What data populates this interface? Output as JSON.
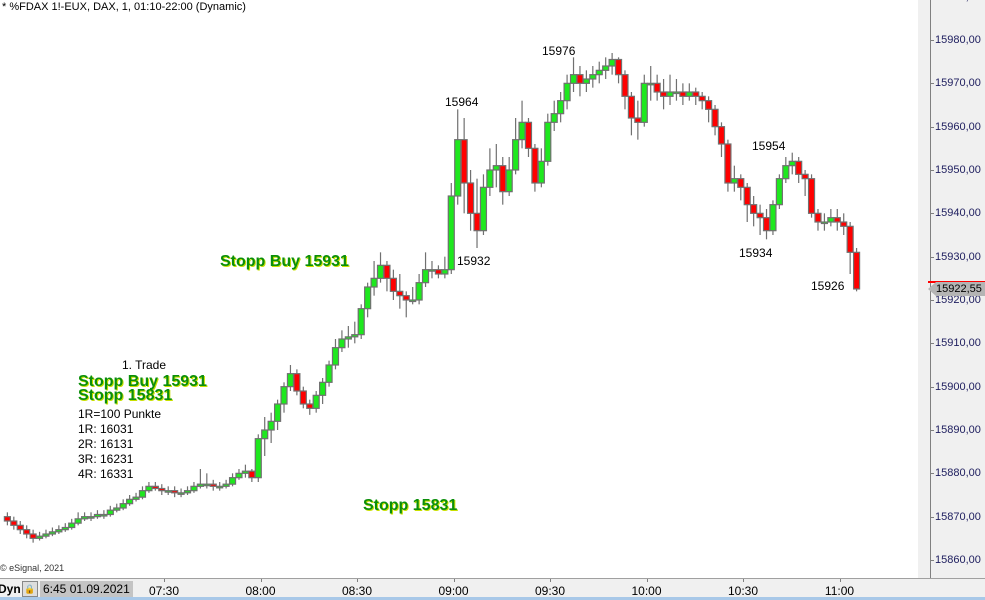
{
  "header": {
    "title": "* %FDAX 1!-EUX, DAX, 1, 01:10-22:00 (Dynamic)"
  },
  "copyright": "© eSignal, 2021",
  "time_axis": {
    "mode_label": "Dyn",
    "lock_icon": "lock-icon",
    "start_label": "6:45 01.09.2021"
  },
  "last_price": "15922,55",
  "colors": {
    "up": "#1ee81e",
    "down": "#ff0000",
    "border": "#707070",
    "annotation_green": "#0b8f0b"
  },
  "annotations": {
    "trade_title": "1. Trade",
    "stop_buy_1": "Stopp Buy 15931",
    "stop_1": "Stopp 15831",
    "r_def": "1R=100 Punkte",
    "r1": "1R: 16031",
    "r2": "2R: 16131",
    "r3": "3R: 16231",
    "r4": "4R: 16331",
    "stop_buy_2": "Stopp Buy 15931",
    "stop_2": "Stopp 15831",
    "p15964": "15964",
    "p15932": "15932",
    "p15976": "15976",
    "p15954": "15954",
    "p15934": "15934",
    "p15926": "15926"
  },
  "chart_data": {
    "type": "candlestick",
    "title": "* %FDAX 1!-EUX, DAX, 1, 01:10-22:00 (Dynamic)",
    "ylim": [
      15857,
      15989
    ],
    "y_ticks": [
      "15990,00",
      "15980,00",
      "15970,00",
      "15960,00",
      "15950,00",
      "15940,00",
      "15930,00",
      "15920,00",
      "15910,00",
      "15900,00",
      "15890,00",
      "15880,00",
      "15870,00",
      "15860,00"
    ],
    "y_tick_values": [
      15990,
      15980,
      15970,
      15960,
      15950,
      15940,
      15930,
      15920,
      15910,
      15900,
      15890,
      15880,
      15870,
      15860
    ],
    "x_ticks": [
      "07:30",
      "08:00",
      "08:30",
      "09:00",
      "09:30",
      "10:00",
      "10:30",
      "11:00"
    ],
    "x_tick_minutes": [
      450,
      480,
      510,
      540,
      570,
      600,
      630,
      660
    ],
    "start_minute": 401,
    "minutes_per_candle": 2,
    "ohlc": [
      [
        15870,
        15871,
        15868,
        15869
      ],
      [
        15869,
        15870,
        15867,
        15868
      ],
      [
        15868,
        15869,
        15866,
        15867
      ],
      [
        15867,
        15868,
        15865,
        15866
      ],
      [
        15866,
        15867,
        15864,
        15865
      ],
      [
        15865,
        15866.5,
        15864.5,
        15865.5
      ],
      [
        15865.5,
        15867,
        15865,
        15866
      ],
      [
        15866,
        15867.5,
        15865.5,
        15866.5
      ],
      [
        15866.5,
        15868,
        15866,
        15867
      ],
      [
        15867,
        15868.5,
        15866.5,
        15867.5
      ],
      [
        15867.5,
        15869.5,
        15867,
        15868.5
      ],
      [
        15868.5,
        15871,
        15868,
        15869.5
      ],
      [
        15869.5,
        15871,
        15869,
        15870
      ],
      [
        15870,
        15871,
        15869,
        15870
      ],
      [
        15870,
        15871.5,
        15869.5,
        15870.5
      ],
      [
        15870.5,
        15871.5,
        15869.5,
        15870.5
      ],
      [
        15870.5,
        15872.5,
        15870,
        15871.5
      ],
      [
        15871.5,
        15873,
        15871,
        15872
      ],
      [
        15872,
        15874,
        15871.5,
        15873
      ],
      [
        15873,
        15875,
        15872.5,
        15874
      ],
      [
        15874,
        15875.5,
        15873.5,
        15874.5
      ],
      [
        15874.5,
        15877,
        15874,
        15876
      ],
      [
        15876,
        15878,
        15875.5,
        15877
      ],
      [
        15877,
        15878,
        15876,
        15876.5
      ],
      [
        15876.5,
        15877.5,
        15875,
        15876
      ],
      [
        15876,
        15877,
        15875,
        15876
      ],
      [
        15876,
        15877,
        15874.5,
        15875.5
      ],
      [
        15875.5,
        15876.5,
        15874.5,
        15875.5
      ],
      [
        15875.5,
        15877,
        15875,
        15876
      ],
      [
        15876,
        15878,
        15875.5,
        15877
      ],
      [
        15877,
        15881,
        15876.5,
        15877.5
      ],
      [
        15877.5,
        15880,
        15876.5,
        15877.5
      ],
      [
        15877.5,
        15878.5,
        15876,
        15877
      ],
      [
        15877,
        15878,
        15876,
        15877
      ],
      [
        15877,
        15878.5,
        15876.5,
        15877.5
      ],
      [
        15877.5,
        15880,
        15877,
        15879
      ],
      [
        15879,
        15881,
        15878.5,
        15880
      ],
      [
        15880,
        15882,
        15879,
        15880.5
      ],
      [
        15880.5,
        15881,
        15878,
        15879
      ],
      [
        15879,
        15889,
        15878,
        15888
      ],
      [
        15888,
        15893,
        15884,
        15890
      ],
      [
        15890,
        15894,
        15887,
        15892
      ],
      [
        15892,
        15897,
        15890,
        15896
      ],
      [
        15896,
        15901,
        15894,
        15900
      ],
      [
        15900,
        15905,
        15899,
        15903
      ],
      [
        15903,
        15904,
        15898,
        15899
      ],
      [
        15899,
        15900,
        15895,
        15896
      ],
      [
        15896,
        15897,
        15893.5,
        15895
      ],
      [
        15895,
        15899,
        15894,
        15898
      ],
      [
        15898,
        15902,
        15896,
        15901
      ],
      [
        15901,
        15906,
        15900,
        15905
      ],
      [
        15905,
        15911,
        15904,
        15909
      ],
      [
        15909,
        15913,
        15908,
        15911
      ],
      [
        15911,
        15914,
        15909,
        15911.5
      ],
      [
        15911.5,
        15915,
        15910,
        15912
      ],
      [
        15912,
        15919,
        15911,
        15918
      ],
      [
        15918,
        15924,
        15916,
        15923
      ],
      [
        15923,
        15929,
        15921,
        15925
      ],
      [
        15925,
        15931,
        15924,
        15928
      ],
      [
        15928,
        15929,
        15922,
        15925
      ],
      [
        15925,
        15927,
        15920,
        15922
      ],
      [
        15922,
        15926,
        15918,
        15921
      ],
      [
        15921,
        15922,
        15916,
        15920
      ],
      [
        15920,
        15923,
        15919,
        15920
      ],
      [
        15920,
        15926,
        15919,
        15924
      ],
      [
        15924,
        15931,
        15923,
        15927
      ],
      [
        15927,
        15929,
        15925,
        15927
      ],
      [
        15927,
        15928,
        15925,
        15926
      ],
      [
        15926,
        15930,
        15925,
        15927
      ],
      [
        15927,
        15947,
        15926,
        15944
      ],
      [
        15944,
        15964,
        15942,
        15957
      ],
      [
        15957,
        15962,
        15940,
        15947
      ],
      [
        15947,
        15950,
        15936,
        15940
      ],
      [
        15940,
        15948,
        15932,
        15936
      ],
      [
        15936,
        15949,
        15935,
        15946
      ],
      [
        15946,
        15955,
        15944,
        15950
      ],
      [
        15950,
        15956,
        15946,
        15951
      ],
      [
        15951,
        15953,
        15942,
        15945
      ],
      [
        15945,
        15953,
        15944,
        15950
      ],
      [
        15950,
        15962,
        15949,
        15957
      ],
      [
        15957,
        15966,
        15955,
        15961
      ],
      [
        15961,
        15962,
        15953,
        15955
      ],
      [
        15955,
        15956,
        15945,
        15947
      ],
      [
        15947,
        15955,
        15946,
        15952
      ],
      [
        15952,
        15963,
        15951,
        15961
      ],
      [
        15961,
        15966,
        15959,
        15963
      ],
      [
        15963,
        15968,
        15961,
        15966
      ],
      [
        15966,
        15972,
        15964,
        15970
      ],
      [
        15970,
        15976,
        15968,
        15972
      ],
      [
        15972,
        15974,
        15967,
        15970
      ],
      [
        15970,
        15973,
        15968,
        15971
      ],
      [
        15971,
        15974,
        15969,
        15972
      ],
      [
        15972,
        15975,
        15970,
        15973
      ],
      [
        15973,
        15976,
        15971,
        15974
      ],
      [
        15974,
        15977,
        15972,
        15975.5
      ],
      [
        15975.5,
        15976,
        15970,
        15972
      ],
      [
        15972,
        15973,
        15964,
        15967
      ],
      [
        15967,
        15968,
        15958,
        15962
      ],
      [
        15962,
        15966,
        15957,
        15961
      ],
      [
        15961,
        15972,
        15960,
        15970
      ],
      [
        15970,
        15974,
        15966,
        15970
      ],
      [
        15970,
        15972,
        15966,
        15968
      ],
      [
        15968,
        15971,
        15964,
        15967
      ],
      [
        15967,
        15972,
        15965,
        15968
      ],
      [
        15968,
        15971,
        15966,
        15968
      ],
      [
        15968,
        15970,
        15965,
        15967
      ],
      [
        15967,
        15970,
        15966,
        15968
      ],
      [
        15968,
        15969,
        15965,
        15967
      ],
      [
        15967,
        15968,
        15964,
        15966
      ],
      [
        15966,
        15967,
        15961,
        15964
      ],
      [
        15964,
        15965,
        15958,
        15960
      ],
      [
        15960,
        15961,
        15953,
        15956
      ],
      [
        15956,
        15957,
        15945,
        15947
      ],
      [
        15947,
        15951,
        15945,
        15948
      ],
      [
        15948,
        15949,
        15943,
        15946
      ],
      [
        15946,
        15947,
        15938,
        15942
      ],
      [
        15942,
        15944,
        15937,
        15940
      ],
      [
        15940,
        15942,
        15935,
        15939
      ],
      [
        15939,
        15941,
        15934,
        15936
      ],
      [
        15936,
        15943,
        15935,
        15942
      ],
      [
        15942,
        15949,
        15941,
        15948
      ],
      [
        15948,
        15953,
        15947,
        15951
      ],
      [
        15951,
        15954,
        15949,
        15952
      ],
      [
        15952,
        15953,
        15947,
        15949
      ],
      [
        15949,
        15950,
        15944,
        15948
      ],
      [
        15948,
        15949,
        15939,
        15940
      ],
      [
        15940,
        15941,
        15936,
        15938
      ],
      [
        15938,
        15940,
        15936,
        15938
      ],
      [
        15938,
        15941,
        15937,
        15939
      ],
      [
        15939,
        15941,
        15936,
        15938
      ],
      [
        15938,
        15940,
        15935,
        15937
      ],
      [
        15937,
        15938,
        15926,
        15931
      ],
      [
        15931,
        15932,
        15922,
        15922.55
      ]
    ]
  }
}
